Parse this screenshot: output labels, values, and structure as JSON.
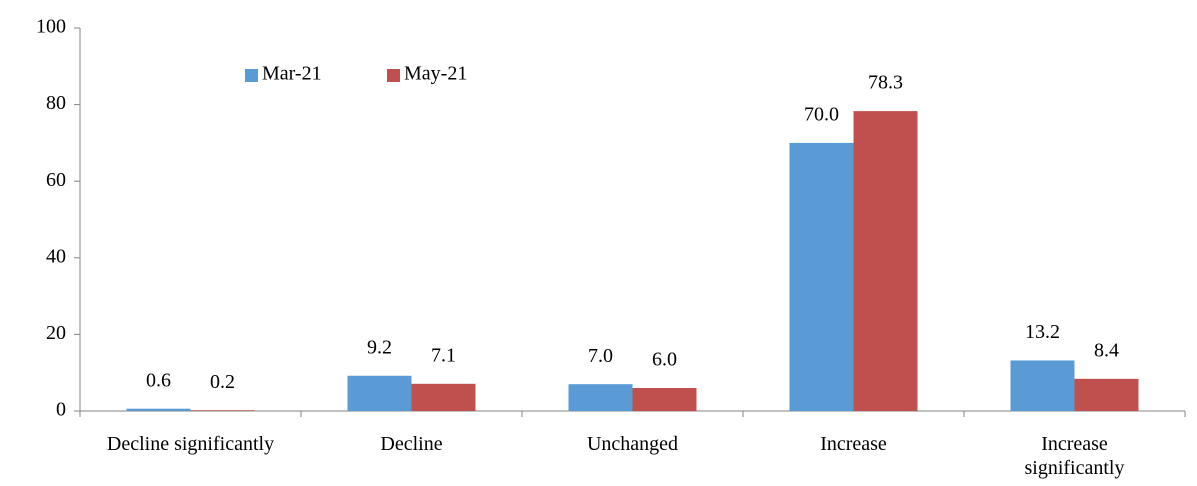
{
  "chart_data": {
    "type": "bar",
    "categories": [
      "Decline significantly",
      "Decline",
      "Unchanged",
      "Increase",
      "Increase significantly"
    ],
    "series": [
      {
        "name": "Mar-21",
        "color": "#5b9bd5",
        "values": [
          0.6,
          9.2,
          7.0,
          70.0,
          13.2
        ],
        "value_labels": [
          "0.6",
          "9.2",
          "7.0",
          "70.0",
          "13.2"
        ]
      },
      {
        "name": "May-21",
        "color": "#c0504d",
        "values": [
          0.2,
          7.1,
          6.0,
          78.3,
          8.4
        ],
        "value_labels": [
          "0.2",
          "7.1",
          "6.0",
          "78.3",
          "8.4"
        ]
      }
    ],
    "ylim": [
      0,
      100
    ],
    "yticks": [
      0,
      20,
      40,
      60,
      80,
      100
    ],
    "grid": false
  }
}
